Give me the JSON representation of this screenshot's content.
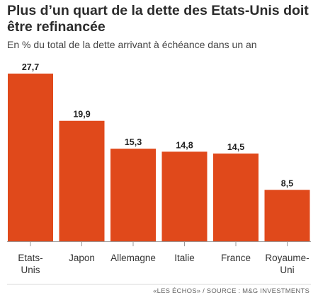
{
  "title": "Plus d’un quart de la dette des Etats-Unis doit être refinancée",
  "subtitle": "En % du total de la dette arrivant à échéance dans un an",
  "source": "«LES ÉCHOS» / SOURCE : M&G INVESTMENTS",
  "colors": {
    "bar": "#e0491b",
    "axis": "#9a9a9a",
    "label": "#222222"
  },
  "chart_data": {
    "type": "bar",
    "categories": [
      [
        "Etats-",
        "Unis"
      ],
      [
        "Japon"
      ],
      [
        "Allemagne"
      ],
      [
        "Italie"
      ],
      [
        "France"
      ],
      [
        "Royaume-",
        "Uni"
      ]
    ],
    "values": [
      27.7,
      19.9,
      15.3,
      14.8,
      14.5,
      8.5
    ],
    "value_labels": [
      "27,7",
      "19,9",
      "15,3",
      "14,8",
      "14,5",
      "8,5"
    ],
    "title": "Plus d’un quart de la dette des Etats-Unis doit être refinancée",
    "ylabel": "",
    "xlabel": "",
    "ylim": [
      0,
      27.7
    ],
    "grid": false,
    "legend": "none"
  }
}
